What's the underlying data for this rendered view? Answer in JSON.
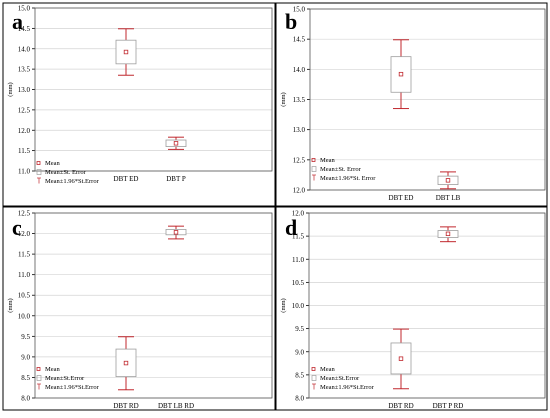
{
  "chart_data": [
    {
      "panel_label": "a",
      "type": "box",
      "ylabel": "(mm)",
      "ylim": [
        11.0,
        15.0
      ],
      "yticks": [
        "11.0",
        "11.5",
        "12.0",
        "12.5",
        "13.0",
        "13.5",
        "14.0",
        "14.5",
        "15.0"
      ],
      "grid": true,
      "legend": [
        "Mean",
        "Mean±St. Error",
        "Mean±1.96*St.Error"
      ],
      "groups": [
        {
          "label": "DBT ED",
          "mean": 13.92,
          "se_low": 13.63,
          "se_high": 14.21,
          "ci_low": 13.35,
          "ci_high": 14.49
        },
        {
          "label": "DBT P",
          "mean": 11.68,
          "se_low": 11.6,
          "se_high": 11.76,
          "ci_low": 11.53,
          "ci_high": 11.83
        }
      ]
    },
    {
      "panel_label": "b",
      "type": "box",
      "ylabel": "(mm)",
      "ylim": [
        12.0,
        15.0
      ],
      "yticks": [
        "12.0",
        "12.5",
        "13.0",
        "13.5",
        "14.0",
        "14.5",
        "15.0"
      ],
      "grid": true,
      "legend": [
        "Mean",
        "Mean±St. Error",
        "Mean±1.96*St. Error"
      ],
      "groups": [
        {
          "label": "DBT ED",
          "mean": 13.92,
          "se_low": 13.62,
          "se_high": 14.21,
          "ci_low": 13.35,
          "ci_high": 14.49
        },
        {
          "label": "DBT LB",
          "mean": 12.16,
          "se_low": 12.09,
          "se_high": 12.23,
          "ci_low": 12.02,
          "ci_high": 12.3
        }
      ]
    },
    {
      "panel_label": "c",
      "type": "box",
      "ylabel": "(mm)",
      "ylim": [
        8.0,
        12.5
      ],
      "yticks": [
        "8.0",
        "8.5",
        "9.0",
        "9.5",
        "10.0",
        "10.5",
        "11.0",
        "11.5",
        "12.0",
        "12.5"
      ],
      "grid": true,
      "legend": [
        "Mean",
        "Mean±St.Error",
        "Mean±1.96*St.Error"
      ],
      "groups": [
        {
          "label": "DBT RD",
          "mean": 8.85,
          "se_low": 8.52,
          "se_high": 9.19,
          "ci_low": 8.2,
          "ci_high": 9.49
        },
        {
          "label": "DBT LB RD",
          "mean": 12.03,
          "se_low": 11.97,
          "se_high": 12.1,
          "ci_low": 11.87,
          "ci_high": 12.18
        }
      ]
    },
    {
      "panel_label": "d",
      "type": "box",
      "ylabel": "(mm)",
      "ylim": [
        8.0,
        12.0
      ],
      "yticks": [
        "8.0",
        "8.5",
        "9.0",
        "9.5",
        "10.0",
        "10.5",
        "11.0",
        "11.5",
        "12.0"
      ],
      "grid": true,
      "legend": [
        "Mean",
        "Mean±St.Error",
        "Mean±1.96*St.Error"
      ],
      "groups": [
        {
          "label": "DBT RD",
          "mean": 8.85,
          "se_low": 8.52,
          "se_high": 9.19,
          "ci_low": 8.2,
          "ci_high": 9.49
        },
        {
          "label": "DBT P RD",
          "mean": 11.55,
          "se_low": 11.47,
          "se_high": 11.62,
          "ci_low": 11.38,
          "ci_high": 11.7
        }
      ]
    }
  ],
  "colors": {
    "mean": "#c0272d",
    "whisker": "#c0272d",
    "box": "#9e9e9e",
    "grid": "#d4d4d4",
    "frame": "#000000"
  }
}
